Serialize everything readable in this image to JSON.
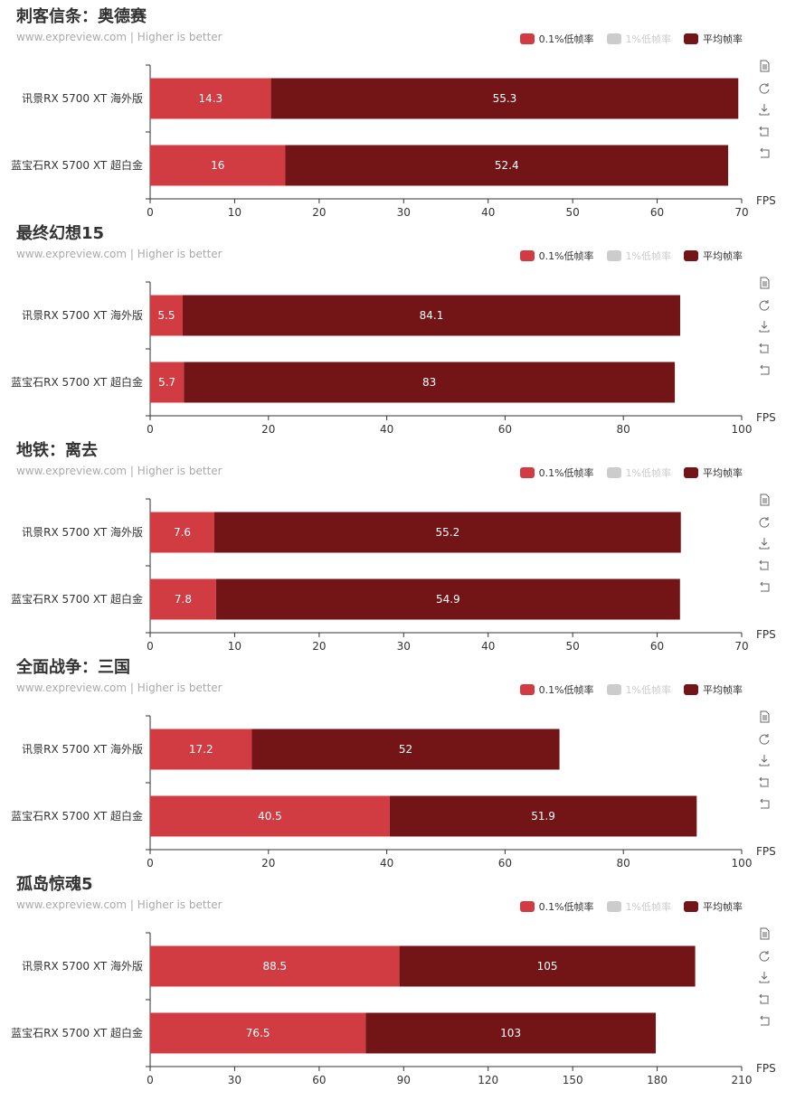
{
  "legend": [
    {
      "label": "0.1%低帧率",
      "color": "#d13b42",
      "active": true
    },
    {
      "label": "1%低帧率",
      "color": "#cccccc",
      "active": false
    },
    {
      "label": "平均帧率",
      "color": "#731416",
      "active": true
    }
  ],
  "toolbox_icons": [
    "data-view-icon",
    "refresh-icon",
    "download-icon",
    "restore-icon",
    "undo-icon"
  ],
  "chart_data": [
    {
      "type": "bar",
      "orientation": "horizontal",
      "stacked": true,
      "title": "刺客信条：奥德赛",
      "subtitle": "www.expreview.com   | Higher is better",
      "categories": [
        "讯景RX 5700 XT 海外版",
        "蓝宝石RX 5700 XT 超白金"
      ],
      "series": [
        {
          "name": "0.1%低帧率",
          "values": [
            14.3,
            16
          ]
        },
        {
          "name": "平均帧率",
          "values": [
            55.3,
            52.4
          ]
        }
      ],
      "xlabel": "FPS",
      "xlim": [
        0,
        70
      ],
      "xticks": [
        0,
        10,
        20,
        30,
        40,
        50,
        60,
        70
      ],
      "legend_position": "top-right",
      "grid": false
    },
    {
      "type": "bar",
      "orientation": "horizontal",
      "stacked": true,
      "title": "最终幻想15",
      "subtitle": "www.expreview.com   | Higher is better",
      "categories": [
        "讯景RX 5700 XT 海外版",
        "蓝宝石RX 5700 XT 超白金"
      ],
      "series": [
        {
          "name": "0.1%低帧率",
          "values": [
            5.5,
            5.7
          ]
        },
        {
          "name": "平均帧率",
          "values": [
            84.1,
            83.0
          ]
        }
      ],
      "xlabel": "FPS",
      "xlim": [
        0,
        100
      ],
      "xticks": [
        0,
        20,
        40,
        60,
        80,
        100
      ],
      "legend_position": "top-right",
      "grid": false
    },
    {
      "type": "bar",
      "orientation": "horizontal",
      "stacked": true,
      "title": "地铁：离去",
      "subtitle": "www.expreview.com   | Higher is better",
      "categories": [
        "讯景RX 5700 XT 海外版",
        "蓝宝石RX 5700 XT 超白金"
      ],
      "series": [
        {
          "name": "0.1%低帧率",
          "values": [
            7.6,
            7.8
          ]
        },
        {
          "name": "平均帧率",
          "values": [
            55.2,
            54.9
          ]
        }
      ],
      "xlabel": "FPS",
      "xlim": [
        0,
        70
      ],
      "xticks": [
        0,
        10,
        20,
        30,
        40,
        50,
        60,
        70
      ],
      "legend_position": "top-right",
      "grid": false
    },
    {
      "type": "bar",
      "orientation": "horizontal",
      "stacked": true,
      "title": "全面战争：三国",
      "subtitle": "www.expreview.com   | Higher is better",
      "categories": [
        "讯景RX 5700 XT 海外版",
        "蓝宝石RX 5700 XT 超白金"
      ],
      "series": [
        {
          "name": "0.1%低帧率",
          "values": [
            17.2,
            40.5
          ]
        },
        {
          "name": "平均帧率",
          "values": [
            52.0,
            51.9
          ]
        }
      ],
      "xlabel": "FPS",
      "xlim": [
        0,
        100
      ],
      "xticks": [
        0,
        20,
        40,
        60,
        80,
        100
      ],
      "legend_position": "top-right",
      "grid": false
    },
    {
      "type": "bar",
      "orientation": "horizontal",
      "stacked": true,
      "title": "孤岛惊魂5",
      "subtitle": "www.expreview.com   | Higher is better",
      "categories": [
        "讯景RX 5700 XT 海外版",
        "蓝宝石RX 5700 XT 超白金"
      ],
      "series": [
        {
          "name": "0.1%低帧率",
          "values": [
            88.5,
            76.5
          ]
        },
        {
          "name": "平均帧率",
          "values": [
            105,
            103
          ]
        }
      ],
      "xlabel": "FPS",
      "xlim": [
        0,
        210
      ],
      "xticks": [
        0,
        30,
        60,
        90,
        120,
        150,
        180,
        210
      ],
      "legend_position": "top-right",
      "grid": false
    }
  ]
}
